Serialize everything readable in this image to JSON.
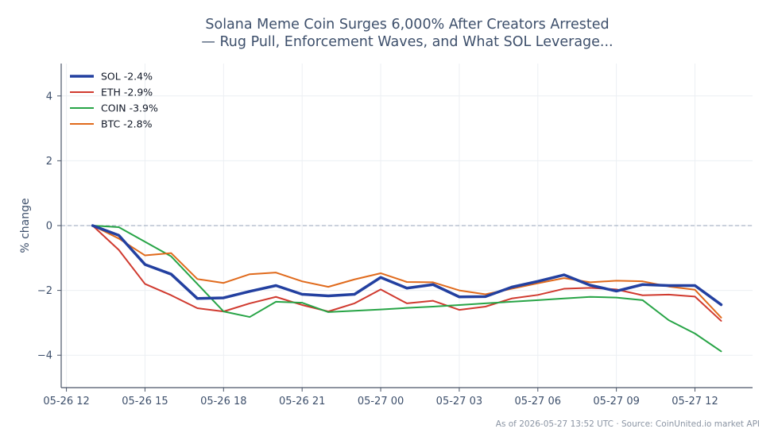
{
  "chart_data": {
    "type": "line",
    "title_line1": "Solana Meme Coin Surges 6,000% After Creators Arrested",
    "title_line2": "— Rug Pull, Enforcement Waves, and What SOL Leverage...",
    "ylabel": "% change",
    "xlabel": "",
    "ylim": [
      -5,
      5
    ],
    "yticks": [
      -4,
      -2,
      0,
      2,
      4
    ],
    "ytick_labels": [
      "−4",
      "−2",
      "0",
      "2",
      "4"
    ],
    "x_start": "2026-05-26 12:00",
    "x_range_hours": [
      -0.2,
      26.2
    ],
    "xticks": [
      0,
      3,
      6,
      9,
      12,
      15,
      18,
      21,
      24
    ],
    "xtick_labels": [
      "05-26 12",
      "05-26 15",
      "05-26 18",
      "05-26 21",
      "05-27 00",
      "05-27 03",
      "05-27 06",
      "05-27 09",
      "05-27 12"
    ],
    "baseline": 0,
    "grid": true,
    "legend_position": "top-left",
    "x": [
      1,
      2,
      3,
      4,
      5,
      6,
      7,
      8,
      9,
      10,
      11,
      12,
      13,
      14,
      15,
      16,
      17,
      18,
      19,
      20,
      21,
      22,
      23,
      24,
      25
    ],
    "series": [
      {
        "name": "SOL -2.4%",
        "color": "#2340a0",
        "width": 3.5,
        "values": [
          0,
          -0.3,
          -1.2,
          -1.5,
          -2.25,
          -2.23,
          -2.03,
          -1.85,
          -2.12,
          -2.17,
          -2.12,
          -1.6,
          -1.93,
          -1.82,
          -2.2,
          -2.19,
          -1.9,
          -1.72,
          -1.52,
          -1.84,
          -2.02,
          -1.82,
          -1.85,
          -1.85,
          -2.44
        ]
      },
      {
        "name": "ETH -2.9%",
        "color": "#d03a2f",
        "width": 2,
        "values": [
          0,
          -0.75,
          -1.8,
          -2.15,
          -2.55,
          -2.65,
          -2.4,
          -2.2,
          -2.45,
          -2.65,
          -2.4,
          -1.97,
          -2.4,
          -2.32,
          -2.6,
          -2.5,
          -2.25,
          -2.14,
          -1.95,
          -1.92,
          -1.97,
          -2.15,
          -2.13,
          -2.19,
          -2.94
        ]
      },
      {
        "name": "COIN -3.9%",
        "color": "#27a446",
        "width": 2,
        "values": [
          0,
          -0.05,
          -0.5,
          -0.95,
          -1.8,
          -2.65,
          -2.82,
          -2.35,
          -2.38,
          -2.67,
          -2.63,
          -2.59,
          -2.54,
          -2.5,
          -2.45,
          -2.4,
          -2.35,
          -2.3,
          -2.25,
          -2.2,
          -2.22,
          -2.3,
          -2.92,
          -3.33,
          -3.88
        ]
      },
      {
        "name": "BTC -2.8%",
        "color": "#e06a1c",
        "width": 2,
        "values": [
          0,
          -0.4,
          -0.92,
          -0.85,
          -1.65,
          -1.77,
          -1.5,
          -1.45,
          -1.72,
          -1.89,
          -1.66,
          -1.47,
          -1.74,
          -1.75,
          -2.0,
          -2.12,
          -1.95,
          -1.78,
          -1.62,
          -1.75,
          -1.7,
          -1.72,
          -1.88,
          -1.98,
          -2.84
        ]
      }
    ]
  },
  "footer": "As of 2026-05-27 13:52 UTC · Source: CoinUnited.io market API"
}
